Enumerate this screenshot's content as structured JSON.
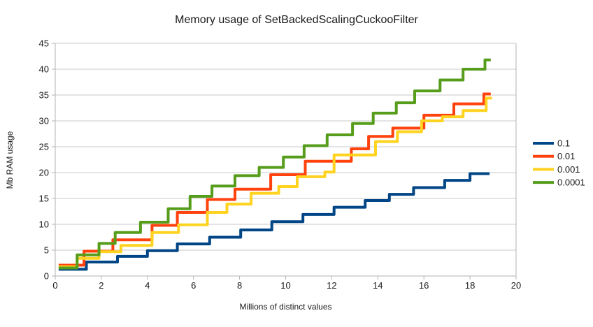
{
  "chart_data": {
    "type": "line",
    "subtype": "step",
    "title": "Memory usage of SetBackedScalingCuckooFilter",
    "xlabel": "Millions of distinct values",
    "ylabel": "Mb RAM usage",
    "xlim": [
      0,
      20
    ],
    "ylim": [
      0,
      45
    ],
    "x_ticks": [
      0,
      2,
      4,
      6,
      8,
      10,
      12,
      14,
      16,
      18,
      20
    ],
    "y_ticks": [
      0,
      5,
      10,
      15,
      20,
      25,
      30,
      35,
      40,
      45
    ],
    "grid": "horizontal-only",
    "legend_position": "right",
    "series": [
      {
        "name": "0.1",
        "color": "#004586",
        "end_x": 18.85,
        "points": [
          [
            0.15,
            1.3
          ],
          [
            1.35,
            2.7
          ],
          [
            2.7,
            3.8
          ],
          [
            4.0,
            4.9
          ],
          [
            5.3,
            6.2
          ],
          [
            6.7,
            7.5
          ],
          [
            8.05,
            8.9
          ],
          [
            9.4,
            10.5
          ],
          [
            10.75,
            11.9
          ],
          [
            12.1,
            13.3
          ],
          [
            13.45,
            14.6
          ],
          [
            14.5,
            15.8
          ],
          [
            15.55,
            17.1
          ],
          [
            16.9,
            18.5
          ],
          [
            18.0,
            19.8
          ]
        ]
      },
      {
        "name": "0.01",
        "color": "#FF420E",
        "end_x": 18.9,
        "points": [
          [
            0.15,
            2.1
          ],
          [
            1.25,
            4.8
          ],
          [
            2.5,
            7.0
          ],
          [
            4.2,
            9.8
          ],
          [
            5.3,
            12.3
          ],
          [
            6.6,
            14.8
          ],
          [
            7.8,
            16.8
          ],
          [
            9.35,
            19.6
          ],
          [
            10.85,
            22.2
          ],
          [
            12.85,
            24.6
          ],
          [
            13.6,
            27.0
          ],
          [
            14.65,
            28.6
          ],
          [
            16.0,
            31.1
          ],
          [
            17.3,
            33.3
          ],
          [
            18.6,
            35.2
          ]
        ]
      },
      {
        "name": "0.001",
        "color": "#FFD320",
        "end_x": 18.95,
        "points": [
          [
            0.15,
            1.8
          ],
          [
            0.95,
            3.4
          ],
          [
            1.9,
            4.7
          ],
          [
            2.85,
            5.9
          ],
          [
            4.2,
            8.4
          ],
          [
            5.35,
            9.9
          ],
          [
            6.6,
            12.3
          ],
          [
            7.45,
            13.9
          ],
          [
            8.5,
            16.0
          ],
          [
            9.7,
            17.3
          ],
          [
            10.5,
            19.2
          ],
          [
            11.7,
            20.1
          ],
          [
            12.1,
            23.4
          ],
          [
            13.9,
            26.0
          ],
          [
            14.85,
            27.9
          ],
          [
            15.9,
            30.0
          ],
          [
            16.8,
            30.8
          ],
          [
            17.7,
            32.0
          ],
          [
            18.7,
            34.4
          ]
        ]
      },
      {
        "name": "0.0001",
        "color": "#579D1C",
        "end_x": 18.9,
        "points": [
          [
            0.15,
            1.55
          ],
          [
            0.95,
            4.1
          ],
          [
            1.9,
            6.3
          ],
          [
            2.6,
            8.4
          ],
          [
            3.7,
            10.4
          ],
          [
            4.9,
            13.0
          ],
          [
            5.85,
            15.4
          ],
          [
            6.8,
            17.4
          ],
          [
            7.8,
            19.4
          ],
          [
            8.85,
            21.0
          ],
          [
            9.9,
            23.0
          ],
          [
            10.8,
            25.2
          ],
          [
            11.8,
            27.3
          ],
          [
            12.9,
            29.5
          ],
          [
            13.8,
            31.5
          ],
          [
            14.8,
            33.5
          ],
          [
            15.6,
            35.8
          ],
          [
            16.7,
            37.9
          ],
          [
            17.7,
            40.0
          ],
          [
            18.65,
            41.8
          ]
        ]
      }
    ]
  },
  "colors": {
    "background": "#ffffff",
    "gridline": "#c9c9c9",
    "axis": "#b3b3b3",
    "text": "#1a1a1a"
  }
}
